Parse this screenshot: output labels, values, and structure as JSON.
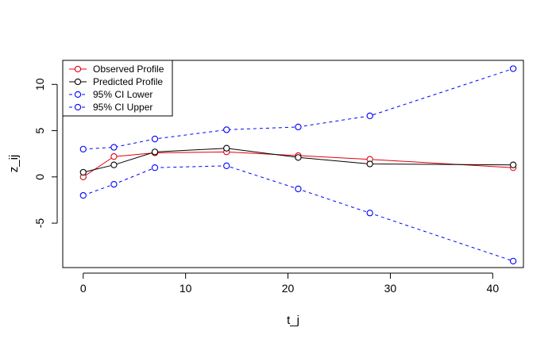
{
  "chart_data": {
    "type": "line",
    "xlabel": "t_j",
    "ylabel": "z_ij",
    "xlim": [
      -2,
      43
    ],
    "ylim": [
      -9.8,
      12.6
    ],
    "xticks": [
      0,
      10,
      20,
      30,
      40
    ],
    "yticks": [
      -5,
      0,
      5,
      10
    ],
    "grid": false,
    "legend_position": "top-left",
    "x": [
      0,
      3,
      7,
      14,
      21,
      28,
      42
    ],
    "series": [
      {
        "name": "Observed Profile",
        "color": "#e0000f",
        "style": "solid",
        "marker": "circle",
        "values": [
          0.0,
          2.2,
          2.6,
          2.7,
          2.3,
          1.9,
          1.0
        ]
      },
      {
        "name": "Predicted Profile",
        "color": "#000000",
        "style": "solid",
        "marker": "circle",
        "values": [
          0.5,
          1.3,
          2.7,
          3.1,
          2.1,
          1.4,
          1.3
        ]
      },
      {
        "name": "95% CI Lower",
        "color": "#0000ff",
        "style": "dashed",
        "marker": "circle",
        "values": [
          -2.0,
          -0.8,
          1.0,
          1.2,
          -1.3,
          -3.9,
          -9.1
        ]
      },
      {
        "name": "95% CI Upper",
        "color": "#0000ff",
        "style": "dashed",
        "marker": "circle",
        "values": [
          3.0,
          3.2,
          4.1,
          5.1,
          5.4,
          6.6,
          11.7
        ]
      }
    ]
  }
}
